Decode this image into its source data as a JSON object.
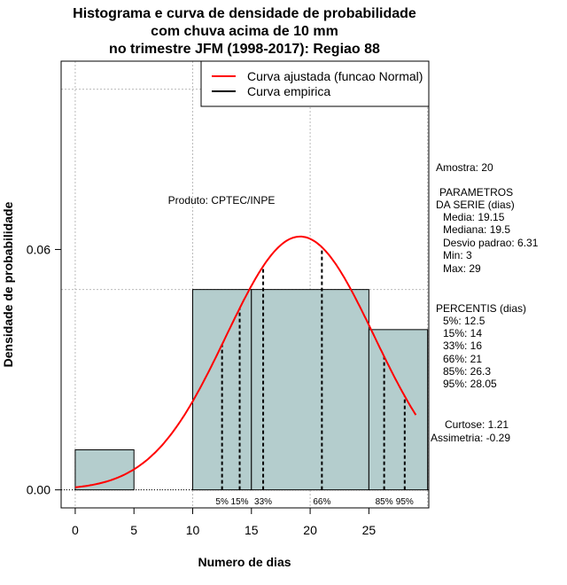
{
  "chart_data": {
    "type": "bar",
    "title_lines": [
      "Histograma e curva de densidade de probabilidade",
      "com chuva acima de 10 mm",
      "no trimestre JFM (1998-2017): Regiao 88"
    ],
    "xlabel": "Numero de dias",
    "ylabel": "Densidade de probabilidade",
    "xlim": [
      -1.2,
      30.1
    ],
    "ylim": [
      -0.0045,
      0.107
    ],
    "xticks": [
      0,
      5,
      10,
      15,
      20,
      25
    ],
    "xtick_labels": [
      "0",
      "5",
      "10",
      "15",
      "20",
      "25"
    ],
    "yticks": [
      0.0,
      0.06
    ],
    "ytick_labels": [
      "0.00",
      "0.06"
    ],
    "grid_x": [
      0,
      10,
      20,
      30
    ],
    "grid_y": [
      0,
      0.05,
      0.1
    ],
    "bins": [
      {
        "from": 0,
        "to": 5,
        "density": 0.01
      },
      {
        "from": 10,
        "to": 15,
        "density": 0.05
      },
      {
        "from": 15,
        "to": 25,
        "density": 0.05
      },
      {
        "from": 25,
        "to": 30,
        "density": 0.04
      }
    ],
    "normal_curve": {
      "mean": 19.15,
      "sd": 6.31,
      "from": 0,
      "to": 29
    },
    "percentile_lines": [
      {
        "label": "5%",
        "value": 12.5
      },
      {
        "label": "15%",
        "value": 14
      },
      {
        "label": "33%",
        "value": 16
      },
      {
        "label": "66%",
        "value": 21
      },
      {
        "label": "85%",
        "value": 26.3
      },
      {
        "label": "95%",
        "value": 28.05
      }
    ],
    "legend": {
      "placement": "top-right",
      "entries": [
        {
          "label": "Curva ajustada (funcao Normal)",
          "color": "#ff0000"
        },
        {
          "label": "Curva empirica",
          "color": "#000000"
        }
      ]
    },
    "annotation": "Produto: CPTEC/INPE",
    "bar_color": "#b4cdcd"
  },
  "stats": {
    "amostra": "Amostra: 20",
    "param_title1": "PARAMETROS",
    "param_title2": "DA SERIE (dias)",
    "media": "Media: 19.15",
    "mediana": "Mediana: 19.5",
    "desvio": "Desvio padrao: 6.31",
    "min": "Min: 3",
    "max": "Max: 29",
    "perc_title": "PERCENTIS (dias)",
    "p5": "5%: 12.5",
    "p15": "15%: 14",
    "p33": "33%: 16",
    "p66": "66%: 21",
    "p85": "85%: 26.3",
    "p95": "95%: 28.05",
    "curtose": "Curtose: 1.21",
    "assimetria": "Assimetria: -0.29"
  }
}
